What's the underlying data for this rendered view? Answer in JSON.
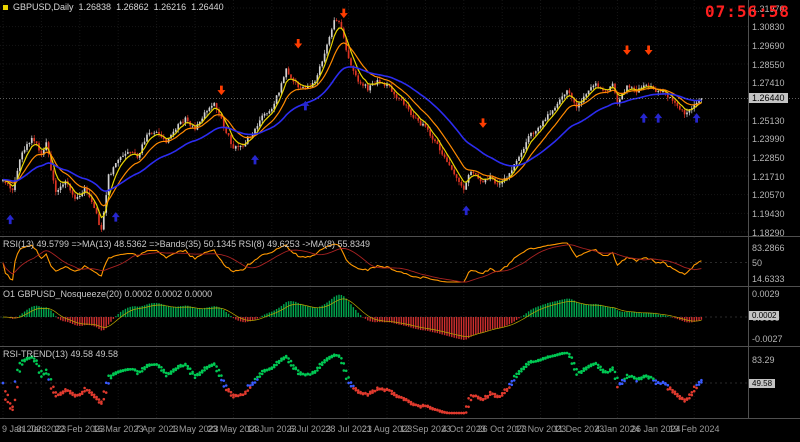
{
  "clock": {
    "time": "07:56:58"
  },
  "colors": {
    "background": "#000000",
    "bull": "#d2d2d2",
    "bear": "#dd3524",
    "hist_up": "#00a84f",
    "hist_down": "#cf2f2f",
    "dot_up": "#00c853",
    "dot_down": "#e03a2e",
    "dot_neutral": "#3a5bff",
    "arrow_up": "#2626cf",
    "arrow_down": "#ff3d00",
    "clock_red": "#ff1f1f",
    "axis_text": "#b5b5b5",
    "price_tag_bg": "#c4c4c4"
  },
  "chart_data": [
    {
      "type": "candlestick",
      "title": "GBPUSD,Daily",
      "ohlc": {
        "open": "1.26838",
        "high": "1.26862",
        "low": "1.26216",
        "close": "1.26440"
      },
      "bars": 292,
      "ylim": [
        1.1829,
        1.3197
      ],
      "y_ticks": [
        "1.31970",
        "1.30830",
        "1.29690",
        "1.28550",
        "1.27410",
        "1.25130",
        "1.23990",
        "1.22850",
        "1.21710",
        "1.20570",
        "1.19430",
        "1.18290"
      ],
      "x_labels": [
        "9 Jan 2023",
        "31 Jan 2023",
        "22 Feb 2023",
        "16 Mar 2023",
        "7 Apr 2023",
        "1 May 2023",
        "23 May 2023",
        "14 Jun 2023",
        "6 Jul 2023",
        "28 Jul 2023",
        "21 Aug 2023",
        "12 Sep 2023",
        "4 Oct 2023",
        "26 Oct 2023",
        "17 Nov 2023",
        "11 Dec 2023",
        "4 Jan 2024",
        "26 Jan 2024",
        "19 Feb 2024"
      ],
      "bars_per_label": 16,
      "close_anchors": [
        [
          0,
          1.215
        ],
        [
          4,
          1.2095
        ],
        [
          8,
          1.232
        ],
        [
          12,
          1.2405
        ],
        [
          16,
          1.231
        ],
        [
          18,
          1.2375
        ],
        [
          22,
          1.206
        ],
        [
          26,
          1.214
        ],
        [
          30,
          1.2035
        ],
        [
          34,
          1.2085
        ],
        [
          38,
          1.1975
        ],
        [
          41,
          1.1835
        ],
        [
          44,
          1.217
        ],
        [
          48,
          1.2265
        ],
        [
          52,
          1.233
        ],
        [
          56,
          1.2295
        ],
        [
          60,
          1.2415
        ],
        [
          64,
          1.244
        ],
        [
          68,
          1.2385
        ],
        [
          72,
          1.2465
        ],
        [
          76,
          1.2515
        ],
        [
          80,
          1.2465
        ],
        [
          84,
          1.2555
        ],
        [
          88,
          1.2625
        ],
        [
          92,
          1.248
        ],
        [
          96,
          1.2345
        ],
        [
          100,
          1.2355
        ],
        [
          104,
          1.244
        ],
        [
          108,
          1.2535
        ],
        [
          112,
          1.2575
        ],
        [
          115,
          1.269
        ],
        [
          118,
          1.282
        ],
        [
          122,
          1.2735
        ],
        [
          126,
          1.2695
        ],
        [
          130,
          1.276
        ],
        [
          134,
          1.292
        ],
        [
          138,
          1.313
        ],
        [
          141,
          1.3085
        ],
        [
          144,
          1.2885
        ],
        [
          148,
          1.2755
        ],
        [
          152,
          1.2705
        ],
        [
          156,
          1.2745
        ],
        [
          160,
          1.273
        ],
        [
          164,
          1.2655
        ],
        [
          168,
          1.2595
        ],
        [
          172,
          1.2515
        ],
        [
          176,
          1.2465
        ],
        [
          180,
          1.2375
        ],
        [
          184,
          1.229
        ],
        [
          188,
          1.2195
        ],
        [
          192,
          1.2085
        ],
        [
          195,
          1.2205
        ],
        [
          199,
          1.214
        ],
        [
          203,
          1.2165
        ],
        [
          207,
          1.2115
        ],
        [
          211,
          1.2175
        ],
        [
          215,
          1.2285
        ],
        [
          219,
          1.2415
        ],
        [
          223,
          1.2465
        ],
        [
          227,
          1.2535
        ],
        [
          231,
          1.2615
        ],
        [
          235,
          1.2695
        ],
        [
          239,
          1.259
        ],
        [
          243,
          1.2675
        ],
        [
          247,
          1.2735
        ],
        [
          251,
          1.2695
        ],
        [
          254,
          1.2725
        ],
        [
          256,
          1.2615
        ],
        [
          260,
          1.2715
        ],
        [
          264,
          1.2695
        ],
        [
          268,
          1.2735
        ],
        [
          272,
          1.2695
        ],
        [
          276,
          1.2675
        ],
        [
          280,
          1.2615
        ],
        [
          284,
          1.2555
        ],
        [
          288,
          1.26
        ],
        [
          291,
          1.2644
        ]
      ],
      "overlays": [
        {
          "name": "EMA(5)",
          "period": 5,
          "color": "#e8d400"
        },
        {
          "name": "EMA(13)",
          "period": 13,
          "color": "#ff8a00"
        },
        {
          "name": "EMA(34)",
          "period": 34,
          "color": "#2c2cf0"
        }
      ],
      "signals": [
        {
          "bar": 3,
          "price": 1.1935,
          "dir": "up"
        },
        {
          "bar": 47,
          "price": 1.195,
          "dir": "up"
        },
        {
          "bar": 91,
          "price": 1.2665,
          "dir": "down"
        },
        {
          "bar": 105,
          "price": 1.23,
          "dir": "up"
        },
        {
          "bar": 123,
          "price": 1.295,
          "dir": "down"
        },
        {
          "bar": 126,
          "price": 1.263,
          "dir": "up"
        },
        {
          "bar": 142,
          "price": 1.3135,
          "dir": "down"
        },
        {
          "bar": 193,
          "price": 1.199,
          "dir": "up"
        },
        {
          "bar": 200,
          "price": 1.2465,
          "dir": "down"
        },
        {
          "bar": 260,
          "price": 1.291,
          "dir": "down"
        },
        {
          "bar": 269,
          "price": 1.291,
          "dir": "down"
        },
        {
          "bar": 267,
          "price": 1.2555,
          "dir": "up"
        },
        {
          "bar": 273,
          "price": 1.2555,
          "dir": "up"
        },
        {
          "bar": 289,
          "price": 1.2555,
          "dir": "up"
        }
      ]
    },
    {
      "type": "line",
      "name": "RSI",
      "label": "RSI(13) 49.5799 =>MA(13) 48.5362 =>Bands(35) 50.1345 RSI(8) 49.6253 ->MA(8) 55.8349",
      "ylim": [
        8,
        92
      ],
      "y_ticks": [
        "83.2866",
        "50",
        "14.6333"
      ],
      "series": [
        {
          "name": "RSI(13)",
          "period": 13,
          "color": "#ff9900"
        },
        {
          "name": "MA(13)",
          "period": 13,
          "color": "#a82222"
        }
      ]
    },
    {
      "type": "bar",
      "name": "Nosqueeze",
      "label": "O1 GBPUSD_Nosqueeze(20) 0.0002 0.0002 0.0000",
      "ylim": [
        -0.0031,
        0.0031
      ],
      "y_ticks": [
        "0.0029",
        "0.0000",
        "-0.0027"
      ],
      "current": "0.0002"
    },
    {
      "type": "scatter",
      "name": "RSI-TREND",
      "label": "RSI-TREND(13) 49.58 49.58",
      "ylim": [
        8,
        92
      ],
      "y_ticks": [
        "83.29",
        "50"
      ],
      "current": "49.58",
      "thresholds": {
        "up": 55,
        "down": 45
      }
    }
  ]
}
